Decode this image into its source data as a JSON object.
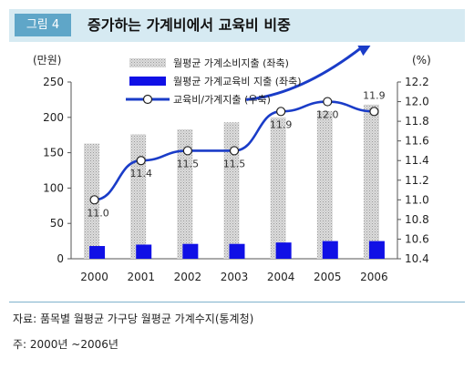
{
  "header": {
    "figure_label": "그림 4",
    "title": "증가하는 가계비에서 교육비 비중"
  },
  "colors": {
    "header_band": "#d6eaf2",
    "badge": "#5fa6c8",
    "bar_household": "#c8c8c8",
    "bar_education": "#1010e6",
    "line_ratio": "#1a3cc8",
    "arrow": "#1a3cc8"
  },
  "chart_data": {
    "type": "bar",
    "categories": [
      "2000",
      "2001",
      "2002",
      "2003",
      "2004",
      "2005",
      "2006"
    ],
    "series": [
      {
        "name": "월평균 가계소비지출 (좌축)",
        "type": "bar",
        "axis": "left",
        "values": [
          163,
          176,
          183,
          193,
          200,
          209,
          218
        ]
      },
      {
        "name": "월평균 가계교육비 지출 (좌축)",
        "type": "bar",
        "axis": "left",
        "values": [
          18,
          20,
          21,
          21,
          23,
          25,
          25
        ]
      },
      {
        "name": "교육비/가계지출 (우축)",
        "type": "line",
        "axis": "right",
        "values": [
          11.0,
          11.4,
          11.5,
          11.5,
          11.9,
          12.0,
          11.9
        ],
        "labels": [
          "11.0",
          "11.4",
          "11.5",
          "11.5",
          "11.9",
          "12.0",
          "11.9"
        ]
      }
    ],
    "left_axis": {
      "unit": "(만원)",
      "ylim": [
        0,
        250
      ],
      "ticks": [
        0,
        50,
        100,
        150,
        200,
        250
      ]
    },
    "right_axis": {
      "unit": "(%)",
      "ylim": [
        10.4,
        12.2
      ],
      "ticks": [
        10.4,
        10.6,
        10.8,
        11.0,
        11.2,
        11.4,
        11.6,
        11.8,
        12.0,
        12.2
      ]
    },
    "grid": false,
    "legend_placement": "top-center",
    "annotation": "upward-trend-arrow"
  },
  "footer": {
    "source": "자료: 품목별 월평균 가구당 월평균 가계수지(통계청)",
    "note": "주: 2000년 ~2006년"
  }
}
